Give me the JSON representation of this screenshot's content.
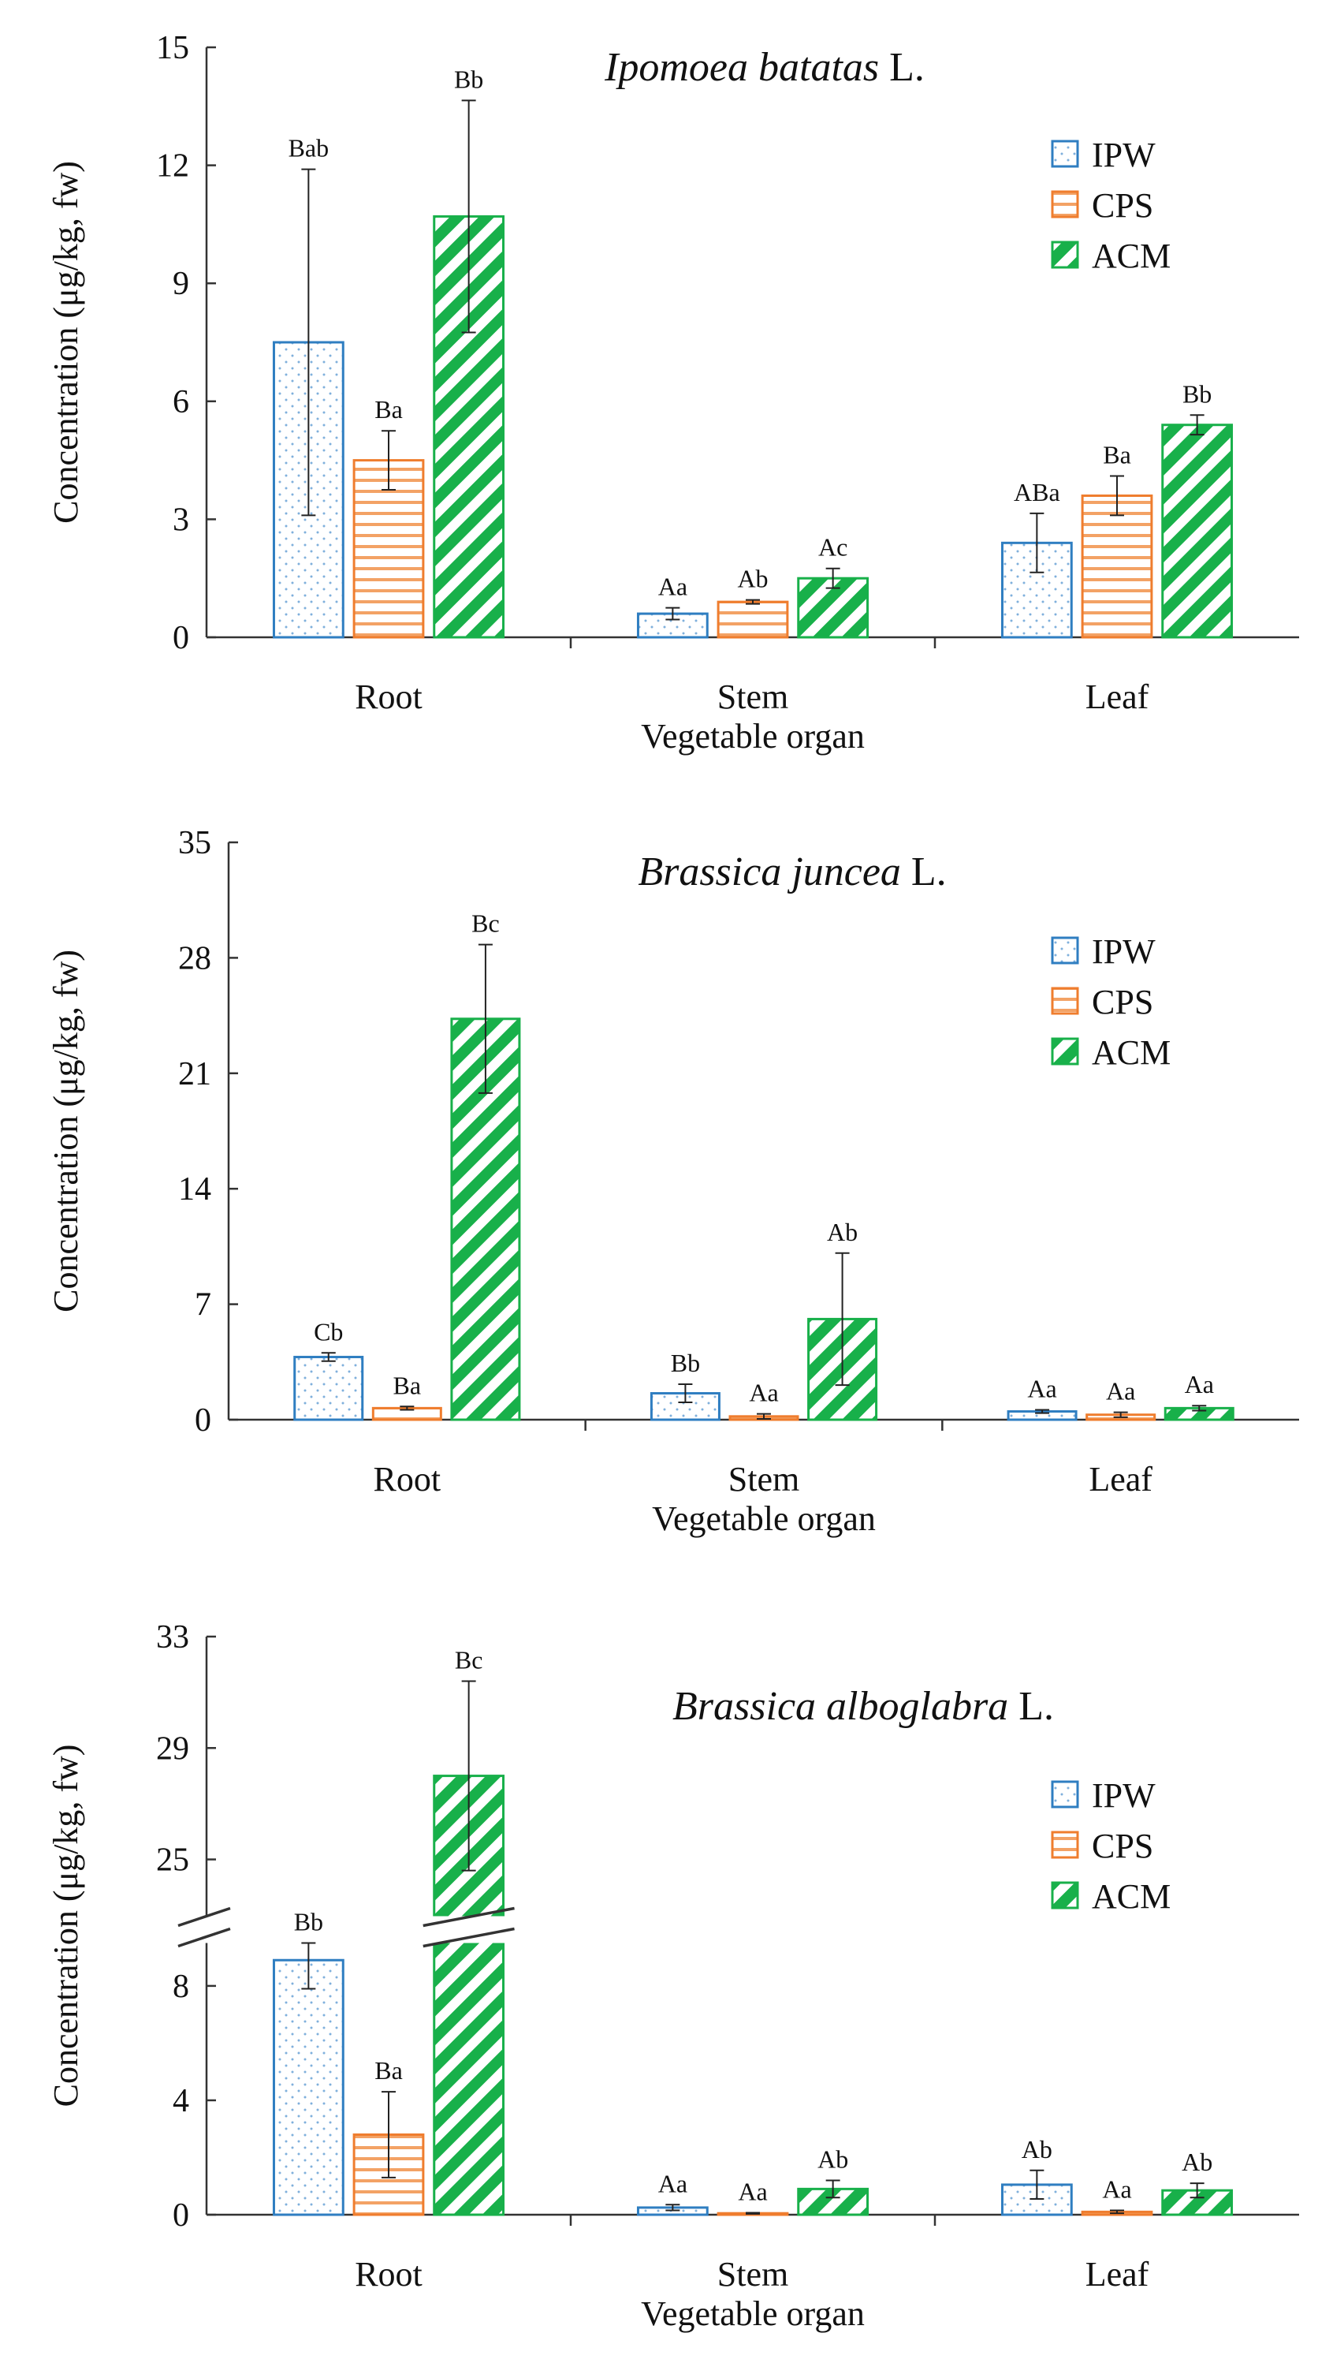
{
  "colors": {
    "IPW": "#2f7ec1",
    "CPS": "#ef7d2e",
    "ACM": "#18b04a",
    "axis": "#333333",
    "errorbar": "#222222"
  },
  "legend_labels": [
    "IPW",
    "CPS",
    "ACM"
  ],
  "chart_data": [
    {
      "type": "bar",
      "title_italic": "Ipomoea batatas",
      "title_suffix": " L.",
      "xlabel": "Vegetable organ",
      "ylabel": "Concentration (μg/kg, fw)",
      "categories": [
        "Root",
        "Stem",
        "Leaf"
      ],
      "ylim": [
        0,
        15
      ],
      "yticks": [
        "0",
        "3",
        "6",
        "9",
        "12",
        "15"
      ],
      "legend_position": "right",
      "series": [
        {
          "name": "IPW",
          "values": [
            7.5,
            0.6,
            2.4
          ],
          "errors": [
            4.4,
            0.15,
            0.75
          ],
          "letters": [
            "Bab",
            "Aa",
            "ABa"
          ]
        },
        {
          "name": "CPS",
          "values": [
            4.5,
            0.9,
            3.6
          ],
          "errors": [
            0.75,
            0.05,
            0.5
          ],
          "letters": [
            "Ba",
            "Ab",
            "Ba"
          ]
        },
        {
          "name": "ACM",
          "values": [
            10.7,
            1.5,
            5.4
          ],
          "errors": [
            2.95,
            0.25,
            0.25
          ],
          "letters": [
            "Bb",
            "Ac",
            "Bb"
          ]
        }
      ]
    },
    {
      "type": "bar",
      "title_italic": "Brassica juncea",
      "title_suffix": " L.",
      "xlabel": "Vegetable organ",
      "ylabel": "Concentration (μg/kg, fw)",
      "categories": [
        "Root",
        "Stem",
        "Leaf"
      ],
      "ylim": [
        0,
        35
      ],
      "yticks": [
        "0",
        "7",
        "14",
        "21",
        "28",
        "35"
      ],
      "legend_position": "right",
      "series": [
        {
          "name": "IPW",
          "values": [
            3.8,
            1.6,
            0.5
          ],
          "errors": [
            0.25,
            0.55,
            0.1
          ],
          "letters": [
            "Cb",
            "Bb",
            "Aa"
          ]
        },
        {
          "name": "CPS",
          "values": [
            0.7,
            0.2,
            0.3
          ],
          "errors": [
            0.1,
            0.15,
            0.15
          ],
          "letters": [
            "Ba",
            "Aa",
            "Aa"
          ]
        },
        {
          "name": "ACM",
          "values": [
            24.3,
            6.1,
            0.7
          ],
          "errors": [
            4.5,
            4.0,
            0.15
          ],
          "letters": [
            "Bc",
            "Ab",
            "Aa"
          ]
        }
      ]
    },
    {
      "type": "bar",
      "title_italic": "Brassica alboglabra",
      "title_suffix": " L.",
      "xlabel": "Vegetable organ",
      "ylabel": "Concentration (μg/kg, fw)",
      "categories": [
        "Root",
        "Stem",
        "Leaf"
      ],
      "ylim": [
        0,
        33
      ],
      "y_axis_break": [
        9.5,
        22.0
      ],
      "yticks": [
        "0",
        "4",
        "8",
        "25",
        "29",
        "33"
      ],
      "legend_position": "right",
      "series": [
        {
          "name": "IPW",
          "values": [
            8.9,
            0.25,
            1.05
          ],
          "errors": [
            1.0,
            0.1,
            0.5
          ],
          "letters": [
            "Bb",
            "Aa",
            "Ab"
          ]
        },
        {
          "name": "CPS",
          "values": [
            2.8,
            0.05,
            0.1
          ],
          "errors": [
            1.5,
            0.02,
            0.05
          ],
          "letters": [
            "Ba",
            "Aa",
            "Aa"
          ]
        },
        {
          "name": "ACM",
          "values": [
            28.0,
            0.9,
            0.85
          ],
          "errors": [
            3.4,
            0.3,
            0.25
          ],
          "letters": [
            "Bc",
            "Ab",
            "Ab"
          ]
        }
      ]
    }
  ]
}
